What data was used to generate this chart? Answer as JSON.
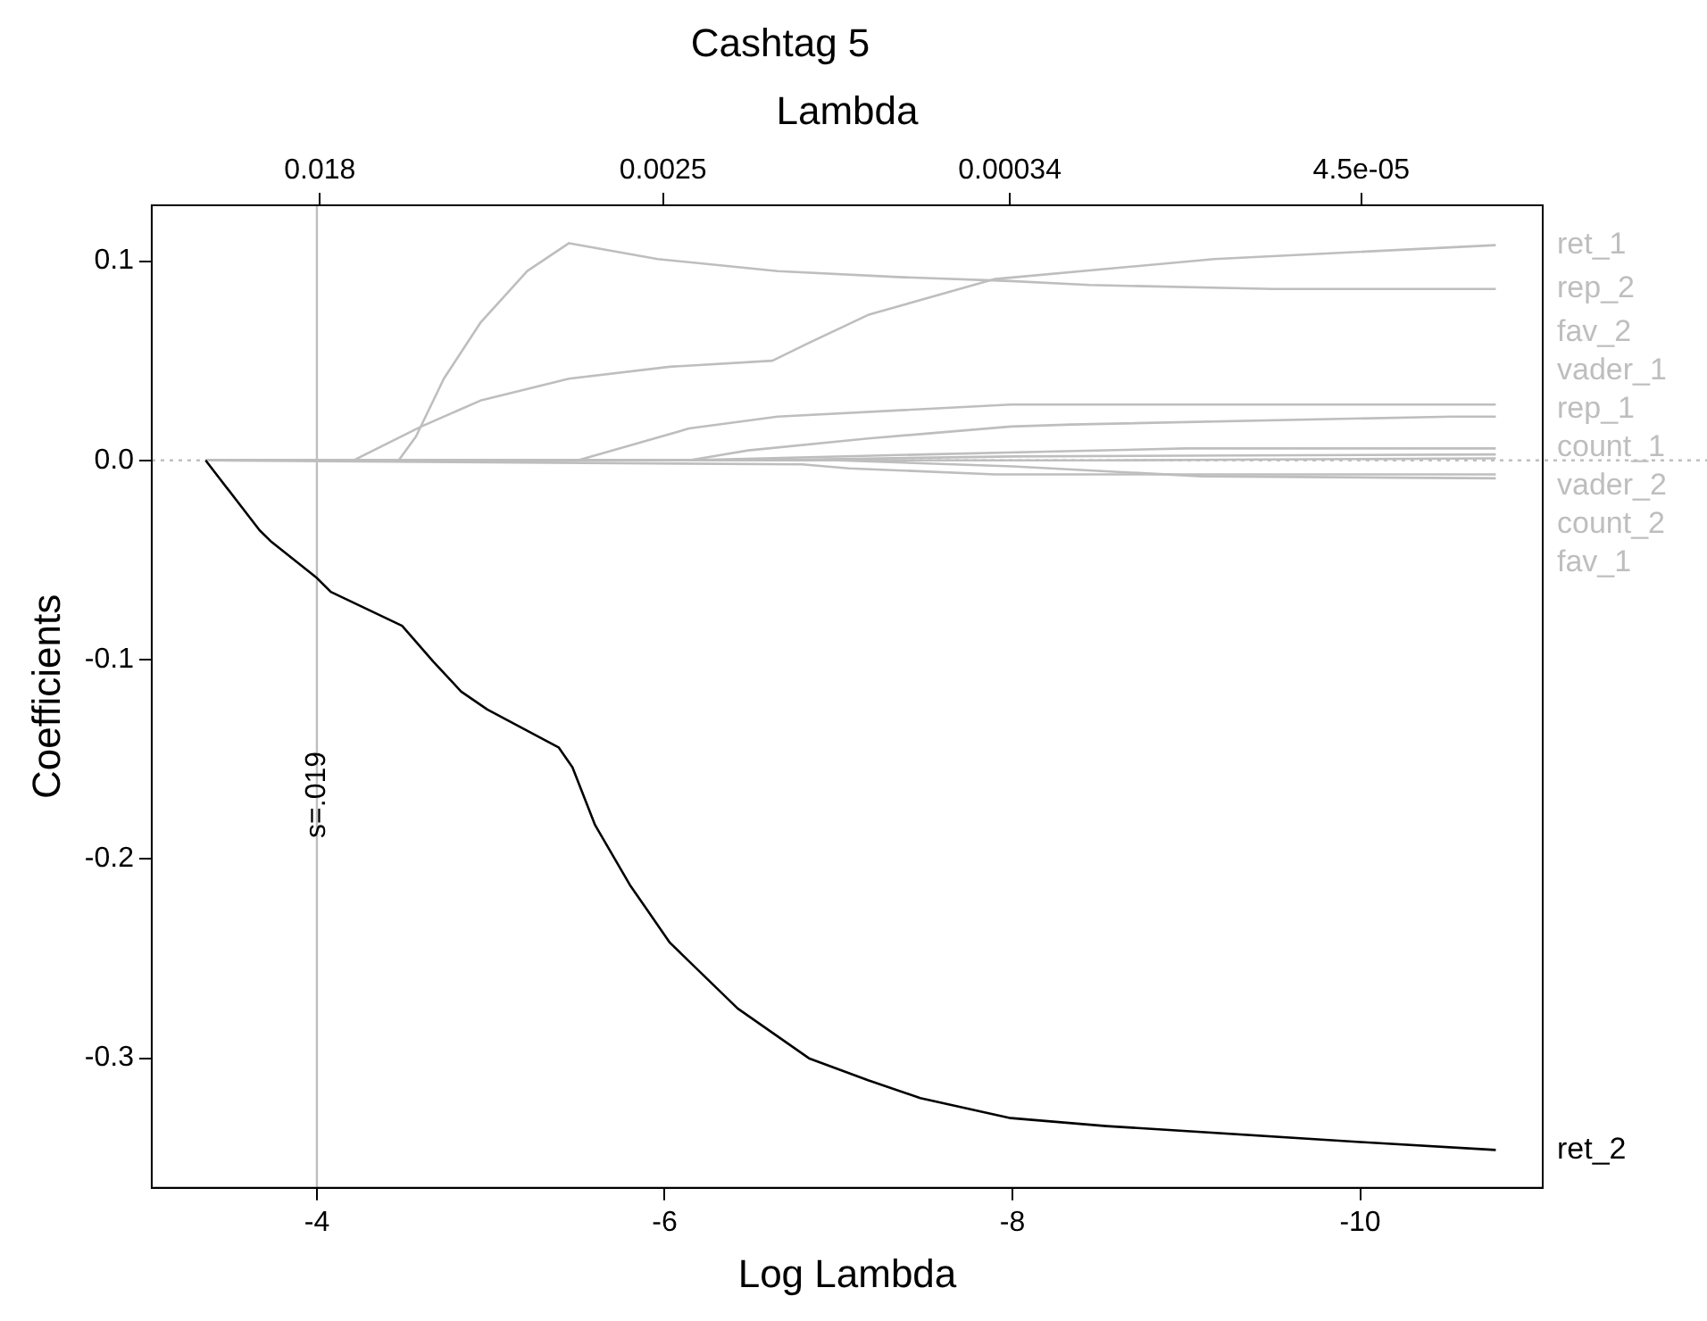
{
  "chart_data": {
    "type": "line",
    "title": "Cashtag 5",
    "xlabel": "Log Lambda",
    "x2label": "Lambda",
    "ylabel": "Coefficients",
    "xlim": [
      -3.05,
      -11.05
    ],
    "xticks": [
      -4,
      -6,
      -8,
      -10
    ],
    "x2lim": [
      0.04736,
      1.585e-05
    ],
    "x2ticks": [
      0.018,
      0.0025,
      0.00034,
      {
        "value": 4.5e-05,
        "label": "4.5e-05"
      }
    ],
    "log": "x2",
    "ylim": [
      -0.365,
      0.128
    ],
    "yticks": [
      0.1,
      {
        "value": 0,
        "label": "0.0"
      },
      -0.1,
      -0.2,
      -0.3
    ],
    "grid": false,
    "ref_lines": [
      {
        "axis": "x",
        "value": -4,
        "label": "s=.019",
        "color": "#bebebe"
      },
      {
        "axis": "y",
        "value": 0,
        "color": "#bebebe",
        "line_style": "dotted"
      }
    ],
    "series": [
      {
        "name": "ret_1",
        "color": "#bebebe",
        "x": [
          -3.36,
          -4.21,
          -4.6,
          -4.94,
          -5.45,
          -6.03,
          -6.62,
          -6.83,
          -7.17,
          -7.9,
          -9.16,
          -10.78
        ],
        "values": [
          0,
          0,
          0.017,
          0.03,
          0.041,
          0.047,
          0.05,
          0.059,
          0.073,
          0.091,
          0.101,
          0.108
        ]
      },
      {
        "name": "rep_2",
        "color": "#bebebe",
        "x": [
          -3.36,
          -4.47,
          -4.57,
          -4.73,
          -4.94,
          -5.21,
          -5.45,
          -5.96,
          -6.65,
          -7.34,
          -7.99,
          -8.44,
          -9.5,
          -10.78
        ],
        "values": [
          0,
          0,
          0.012,
          0.041,
          0.069,
          0.095,
          0.109,
          0.101,
          0.095,
          0.092,
          0.09,
          0.088,
          0.086,
          0.086
        ]
      },
      {
        "name": "fav_2",
        "color": "#bebebe",
        "x": [
          -3.36,
          -5.5,
          -6.14,
          -6.65,
          -7.99,
          -8.44,
          -10.78
        ],
        "values": [
          0,
          0,
          0.016,
          0.022,
          0.028,
          0.028,
          0.028
        ]
      },
      {
        "name": "vader_1",
        "color": "#bebebe",
        "x": [
          -3.36,
          -6.14,
          -6.48,
          -7.17,
          -7.99,
          -8.34,
          -10.53,
          -10.78
        ],
        "values": [
          0,
          0,
          0.005,
          0.011,
          0.017,
          0.018,
          0.022,
          0.022
        ]
      },
      {
        "name": "rep_1",
        "color": "#bebebe",
        "x": [
          -3.36,
          -6.1,
          -7.5,
          -9.0,
          -10.78
        ],
        "values": [
          0,
          0,
          0.003,
          0.006,
          0.006
        ]
      },
      {
        "name": "count_1",
        "color": "#bebebe",
        "x": [
          -3.36,
          -6.5,
          -8.0,
          -10.78
        ],
        "values": [
          0,
          0,
          0.002,
          0.003
        ]
      },
      {
        "name": "vader_2",
        "color": "#bebebe",
        "x": [
          -3.36,
          -8.5,
          -10.78
        ],
        "values": [
          0,
          0,
          0.001
        ]
      },
      {
        "name": "count_2",
        "color": "#bebebe",
        "x": [
          -3.36,
          -6.79,
          -7.06,
          -7.9,
          -10.78
        ],
        "values": [
          0,
          -0.002,
          -0.004,
          -0.007,
          -0.007
        ]
      },
      {
        "name": "fav_1",
        "color": "#bebebe",
        "x": [
          -3.36,
          -7.0,
          -8.0,
          -9.09,
          -10.78
        ],
        "values": [
          0,
          0,
          -0.003,
          -0.008,
          -0.009
        ]
      },
      {
        "name": "ret_2",
        "color": "#000000",
        "x": [
          -3.36,
          -3.67,
          -3.74,
          -4.0,
          -4.08,
          -4.49,
          -4.67,
          -4.83,
          -4.98,
          -5.39,
          -5.47,
          -5.6,
          -5.8,
          -6.03,
          -6.42,
          -6.83,
          -7.17,
          -7.47,
          -7.99,
          -8.54,
          -10.0,
          -10.78
        ],
        "values": [
          0,
          -0.035,
          -0.041,
          -0.059,
          -0.066,
          -0.083,
          -0.101,
          -0.116,
          -0.125,
          -0.144,
          -0.154,
          -0.183,
          -0.213,
          -0.242,
          -0.275,
          -0.3,
          -0.311,
          -0.32,
          -0.33,
          -0.334,
          -0.342,
          -0.346
        ]
      }
    ]
  }
}
